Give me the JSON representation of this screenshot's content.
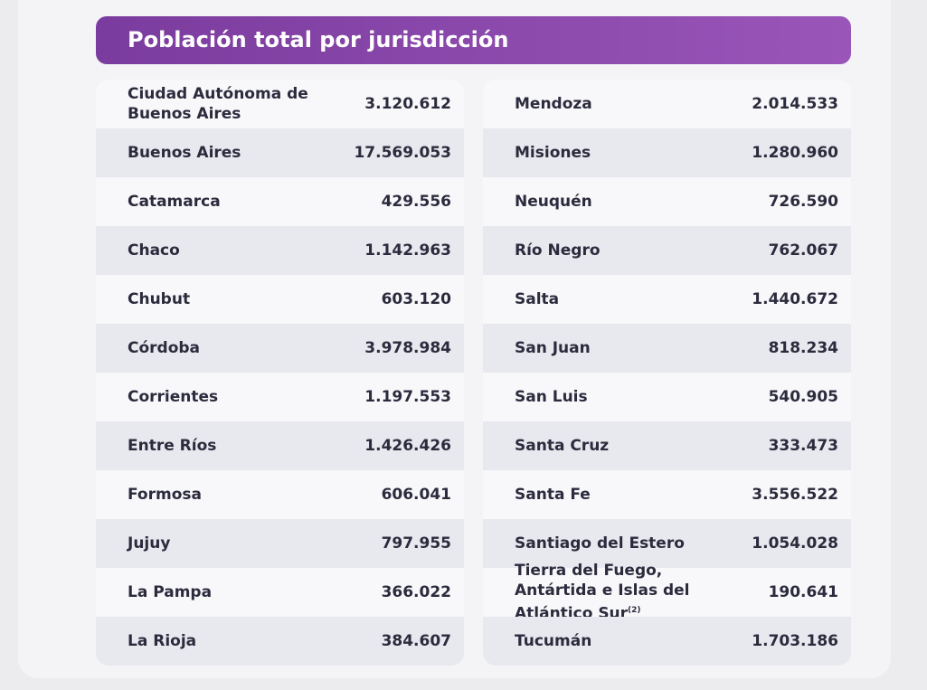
{
  "header": {
    "title": "Población total por jurisdicción"
  },
  "tables": [
    {
      "rows": [
        {
          "name": "Ciudad Autónoma de Buenos Aires",
          "value": "3.120.612"
        },
        {
          "name": "Buenos Aires",
          "value": "17.569.053"
        },
        {
          "name": "Catamarca",
          "value": "429.556"
        },
        {
          "name": "Chaco",
          "value": "1.142.963"
        },
        {
          "name": "Chubut",
          "value": "603.120"
        },
        {
          "name": "Córdoba",
          "value": "3.978.984"
        },
        {
          "name": "Corrientes",
          "value": "1.197.553"
        },
        {
          "name": "Entre Ríos",
          "value": "1.426.426"
        },
        {
          "name": "Formosa",
          "value": "606.041"
        },
        {
          "name": "Jujuy",
          "value": "797.955"
        },
        {
          "name": "La Pampa",
          "value": "366.022"
        },
        {
          "name": "La Rioja",
          "value": "384.607"
        }
      ]
    },
    {
      "rows": [
        {
          "name": "Mendoza",
          "value": "2.014.533"
        },
        {
          "name": "Misiones",
          "value": "1.280.960"
        },
        {
          "name": "Neuquén",
          "value": "726.590"
        },
        {
          "name": "Río Negro",
          "value": "762.067"
        },
        {
          "name": "Salta",
          "value": "1.440.672"
        },
        {
          "name": "San Juan",
          "value": "818.234"
        },
        {
          "name": "San Luis",
          "value": "540.905"
        },
        {
          "name": "Santa Cruz",
          "value": "333.473"
        },
        {
          "name": "Santa Fe",
          "value": "3.556.522"
        },
        {
          "name": "Santiago del Estero",
          "value": "1.054.028"
        },
        {
          "name": "Tierra del Fuego, Antártida e Islas del Atlántico Sur",
          "note": "(2)",
          "value": "190.641"
        },
        {
          "name": "Tucumán",
          "value": "1.703.186"
        }
      ]
    }
  ]
}
